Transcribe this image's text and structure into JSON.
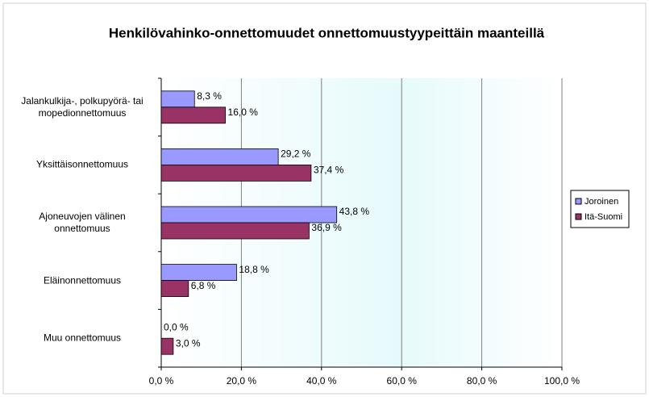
{
  "chart_data": {
    "type": "hbar",
    "title": "Henkilövahinko-onnettomuudet onnettomuustyypeittäin maanteillä",
    "categories": [
      "Jalankulkija-, polkupyörä- tai mopedionnettomuus",
      "Yksittäisonnettomuus",
      "Ajoneuvojen välinen onnettomuus",
      "Eläinonnettomuus",
      "Muu onnettomuus"
    ],
    "series": [
      {
        "name": "Joroinen",
        "color": "#9999ff",
        "values": [
          8.3,
          29.2,
          43.8,
          18.8,
          0.0
        ],
        "value_labels": [
          "8,3 %",
          "29,2 %",
          "43,8 %",
          "18,8 %",
          "0,0 %"
        ]
      },
      {
        "name": "Itä-Suomi",
        "color": "#993366",
        "values": [
          16.0,
          37.4,
          36.9,
          6.8,
          3.0
        ],
        "value_labels": [
          "16,0 %",
          "37,4 %",
          "36,9 %",
          "6,8 %",
          "3,0 %"
        ]
      }
    ],
    "xlim": [
      0,
      100
    ],
    "xticks": [
      {
        "value": 0,
        "label": "0,0 %"
      },
      {
        "value": 20,
        "label": "20,0 %"
      },
      {
        "value": 40,
        "label": "40,0 %"
      },
      {
        "value": 60,
        "label": "60,0 %"
      },
      {
        "value": 80,
        "label": "80,0 %"
      },
      {
        "value": 100,
        "label": "100,0 %"
      }
    ],
    "grid": true,
    "legend": "right"
  }
}
